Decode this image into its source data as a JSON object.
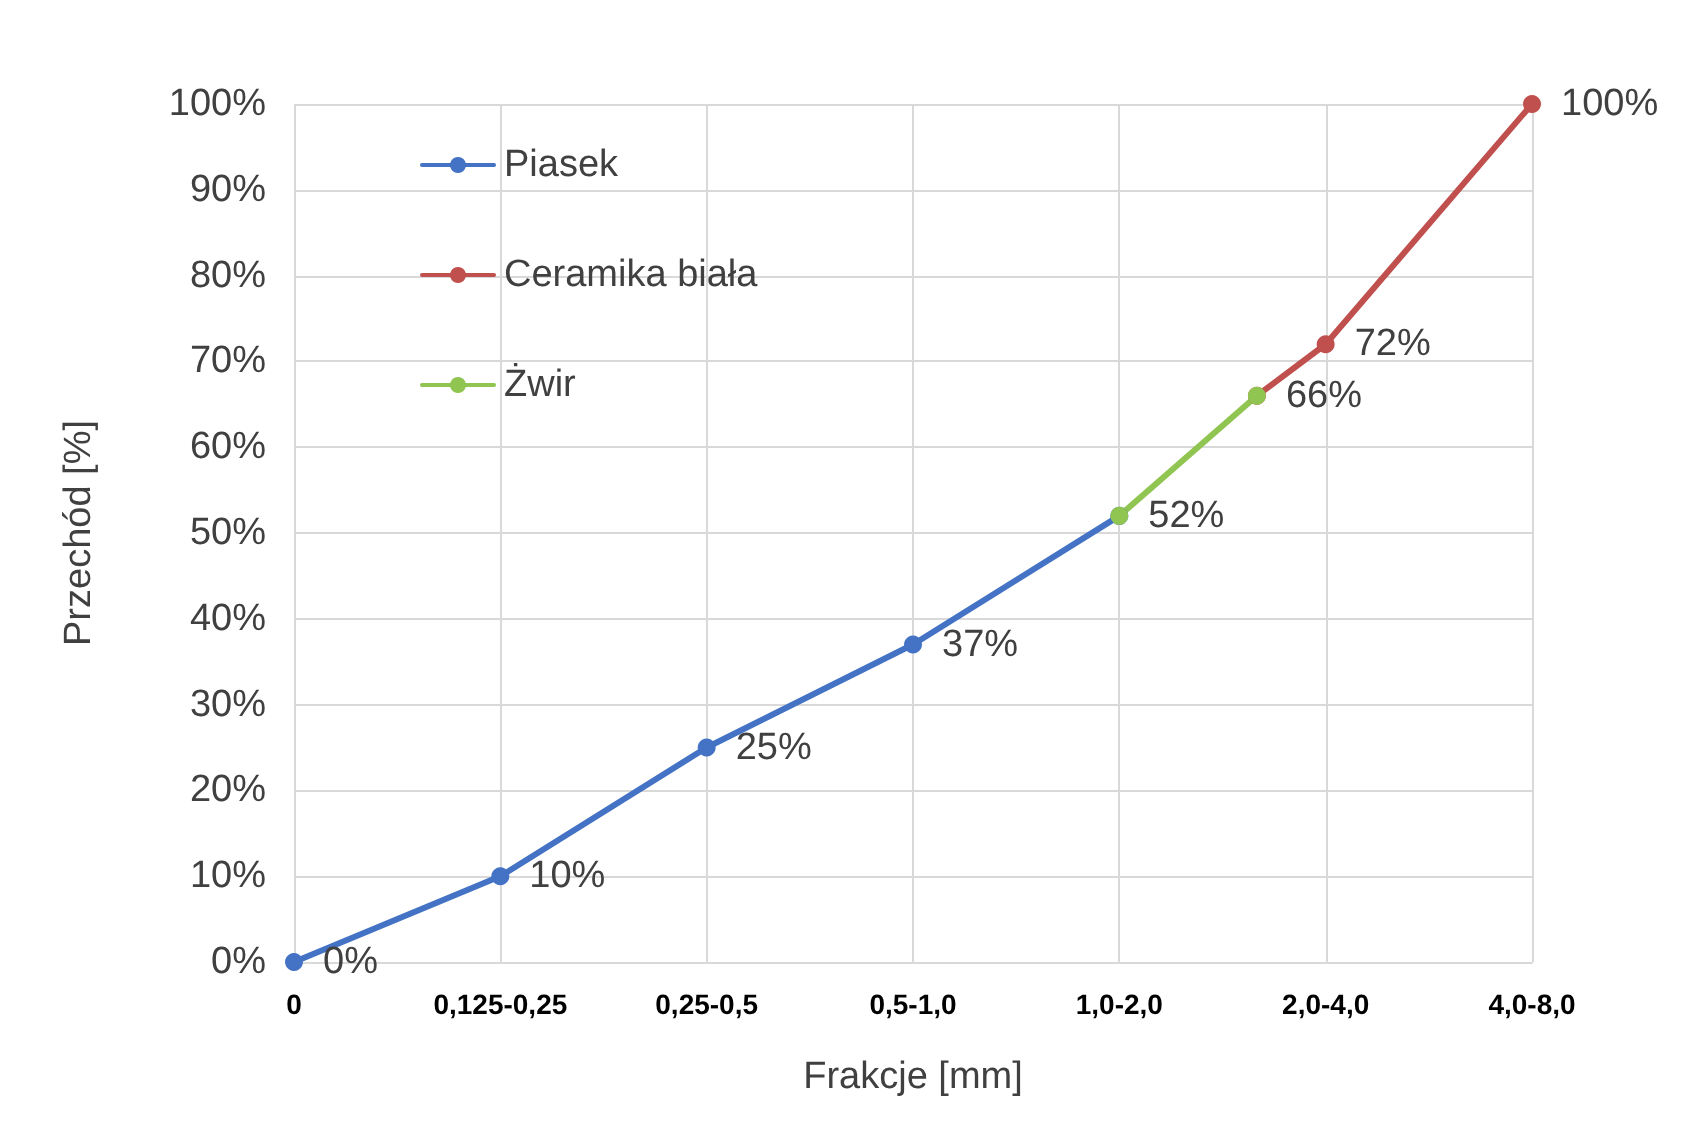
{
  "chart_data": {
    "type": "line",
    "xlabel": "Frakcje [mm]",
    "ylabel": "Przechód [%]",
    "categories": [
      "0",
      null,
      null,
      "0,125-0,25",
      null,
      null,
      "0,25-0,5",
      null,
      null,
      "0,5-1,0",
      null,
      null,
      "1,0-2,0",
      null,
      null,
      "2,0-4,0",
      null,
      null,
      "4,0-8,0"
    ],
    "ylim": [
      0,
      100
    ],
    "yticks": [
      {
        "value": 0,
        "label": "0%"
      },
      {
        "value": 10,
        "label": "10%"
      },
      {
        "value": 20,
        "label": "20%"
      },
      {
        "value": 30,
        "label": "30%"
      },
      {
        "value": 40,
        "label": "40%"
      },
      {
        "value": 50,
        "label": "50%"
      },
      {
        "value": 60,
        "label": "60%"
      },
      {
        "value": 70,
        "label": "70%"
      },
      {
        "value": 80,
        "label": "80%"
      },
      {
        "value": 90,
        "label": "90%"
      },
      {
        "value": 100,
        "label": "100%"
      }
    ],
    "series": [
      {
        "name": "Piasek",
        "color": "#4472c4",
        "values": [
          0,
          null,
          null,
          10,
          null,
          null,
          25,
          null,
          null,
          37,
          null,
          null,
          52,
          null,
          null,
          null,
          null,
          null,
          null
        ],
        "value_labels": [
          "0%",
          null,
          null,
          "10%",
          null,
          null,
          "25%",
          null,
          null,
          "37%",
          null,
          null,
          null,
          null,
          null,
          null,
          null,
          null,
          null
        ]
      },
      {
        "name": "Ceramika biała",
        "color": "#c0504d",
        "values": [
          null,
          null,
          null,
          null,
          null,
          null,
          null,
          null,
          null,
          null,
          null,
          null,
          null,
          null,
          66,
          72,
          null,
          null,
          100
        ],
        "value_labels": [
          null,
          null,
          null,
          null,
          null,
          null,
          null,
          null,
          null,
          null,
          null,
          null,
          null,
          null,
          null,
          "72%",
          null,
          null,
          "100%"
        ]
      },
      {
        "name": "Żwir",
        "color": "#8fc550",
        "values": [
          null,
          null,
          null,
          null,
          null,
          null,
          null,
          null,
          null,
          null,
          null,
          null,
          52,
          null,
          66,
          null,
          null,
          null,
          null
        ],
        "value_labels": [
          null,
          null,
          null,
          null,
          null,
          null,
          null,
          null,
          null,
          null,
          null,
          null,
          "52%",
          null,
          "66%",
          null,
          null,
          null,
          null
        ]
      }
    ],
    "grid": true,
    "legend": "top left",
    "marker": "circle",
    "line_style": "solid"
  }
}
